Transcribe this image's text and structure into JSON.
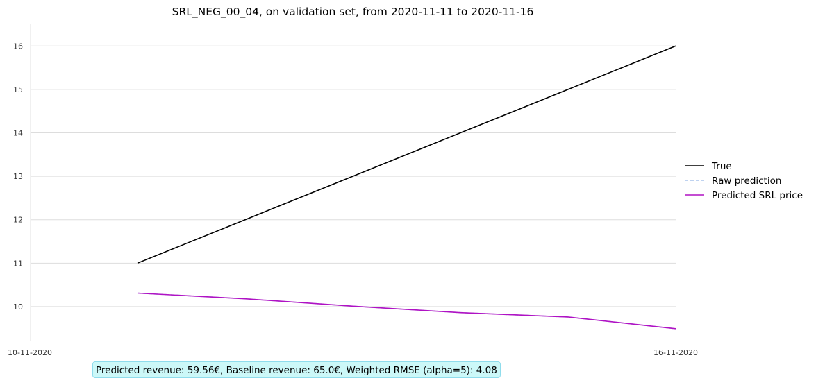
{
  "chart_data": {
    "type": "line",
    "title": "SRL_NEG_00_04, on validation set, from 2020-11-11 to 2020-11-16",
    "xlabel": "",
    "ylabel": "",
    "x": [
      "2020-11-11",
      "2020-11-12",
      "2020-11-13",
      "2020-11-14",
      "2020-11-15",
      "2020-11-16"
    ],
    "xlim": [
      "2020-11-10",
      "2020-11-16"
    ],
    "xticks": [
      {
        "value": "2020-11-10",
        "label": "10-11-2020"
      },
      {
        "value": "2020-11-16",
        "label": "16-11-2020"
      }
    ],
    "ylim": [
      9.2,
      16.5
    ],
    "yticks": [
      10,
      11,
      12,
      13,
      14,
      15,
      16
    ],
    "grid": "horizontal",
    "legend": "right",
    "series": [
      {
        "name": "True",
        "color": "#000000",
        "dash": "solid",
        "values": [
          11,
          12,
          13,
          14,
          15,
          16
        ]
      },
      {
        "name": "Raw prediction",
        "color": "#a8c4ec",
        "dash": "dashed",
        "values": [
          10.31,
          10.18,
          10.01,
          9.86,
          9.76,
          9.49
        ]
      },
      {
        "name": "Predicted SRL price",
        "color": "#b012c4",
        "dash": "solid",
        "values": [
          10.31,
          10.18,
          10.01,
          9.86,
          9.76,
          9.49
        ]
      }
    ],
    "annotation": "Predicted revenue: 59.56€, Baseline revenue: 65.0€, Weighted RMSE (alpha=5): 4.08"
  }
}
